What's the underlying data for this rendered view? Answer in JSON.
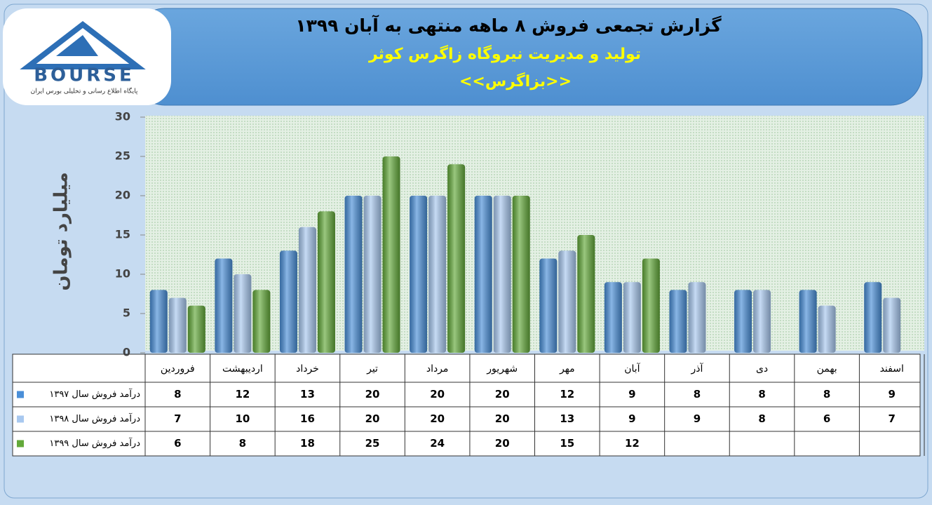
{
  "logo": {
    "name": "BOURSE",
    "tagline": "پایگاه اطلاع رسانی و تحلیلی بورس ایران"
  },
  "chart_data": {
    "type": "bar",
    "title": "گزارش تجمعی فروش ۸ ماهه منتهی به آبان ۱۳۹۹",
    "subtitle": "تولید و مدیریت نیروگاه زاگرس کوثر",
    "symbol": "<<بزاگرس>>",
    "y_label": "میلیارد تومان",
    "categories": [
      "فروردین",
      "اردیبهشت",
      "خرداد",
      "تیر",
      "مرداد",
      "شهریور",
      "مهر",
      "آبان",
      "آذر",
      "دی",
      "بهمن",
      "اسفند"
    ],
    "series": [
      {
        "name": "درآمد فروش سال ۱۳۹۷",
        "color": "#4a8fd8",
        "values": [
          8,
          12,
          13,
          20,
          20,
          20,
          12,
          9,
          8,
          8,
          8,
          9
        ]
      },
      {
        "name": "درآمد فروش سال ۱۳۹۸",
        "color": "#a8c8ef",
        "values": [
          7,
          10,
          16,
          20,
          20,
          20,
          13,
          9,
          9,
          8,
          6,
          7
        ]
      },
      {
        "name": "درآمد فروش سال ۱۳۹۹",
        "color": "#63a93a",
        "values": [
          6,
          8,
          18,
          25,
          24,
          20,
          15,
          12,
          null,
          null,
          null,
          null
        ]
      }
    ],
    "ylim": [
      0,
      30
    ],
    "yticks": [
      0,
      5,
      10,
      15,
      20,
      25,
      30
    ]
  }
}
